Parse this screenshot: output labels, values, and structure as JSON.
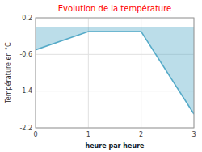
{
  "chart_data": {
    "type": "area",
    "title": "Evolution de la température",
    "xlabel": "heure par heure",
    "ylabel": "Température en °C",
    "x": [
      0,
      1,
      2,
      3
    ],
    "values": [
      -0.5,
      -0.1,
      -0.1,
      -1.9
    ],
    "color": "#55aac8",
    "xlim": [
      0,
      3
    ],
    "ylim": [
      -2.2,
      0.2
    ],
    "xticks": [
      0,
      1,
      2,
      3
    ],
    "yticks": [
      0.2,
      -0.6,
      -1.4,
      -2.2
    ],
    "grid": true
  }
}
